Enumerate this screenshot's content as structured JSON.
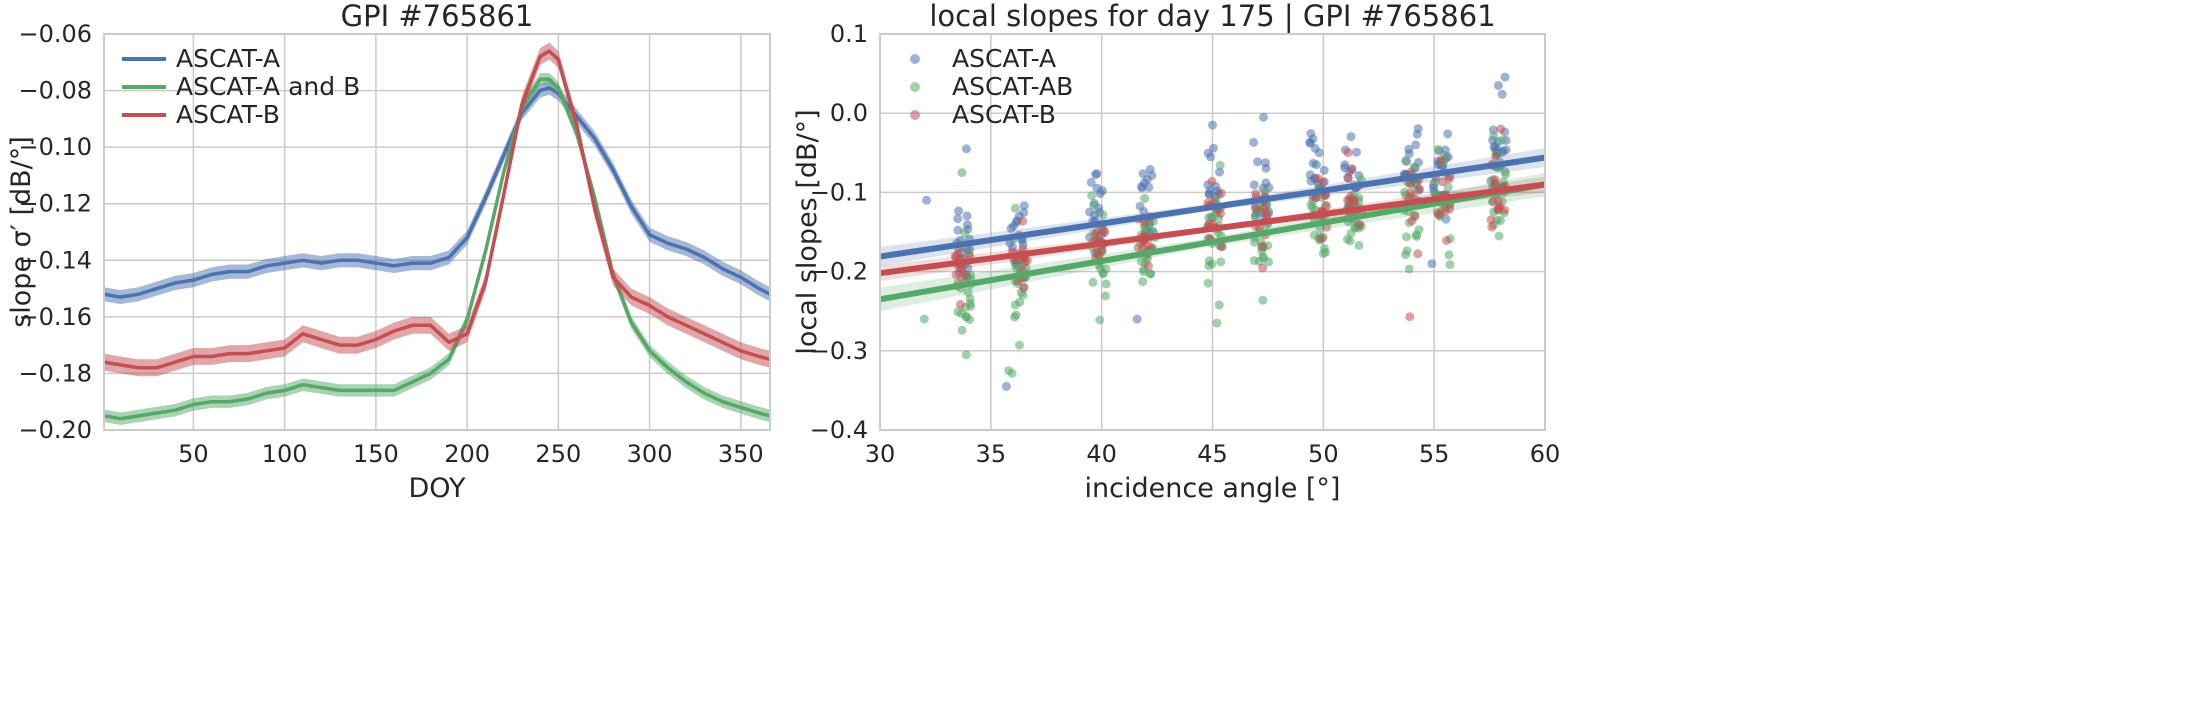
{
  "chart_data": [
    {
      "type": "line",
      "title": "GPI #765861",
      "xlabel": "DOY",
      "ylabel": "slope σ′ [dB/°]",
      "xlim": [
        1,
        366
      ],
      "ylim": [
        -0.2,
        -0.06
      ],
      "xticks": [
        50,
        100,
        150,
        200,
        250,
        300,
        350
      ],
      "yticks": [
        -0.2,
        -0.18,
        -0.16,
        -0.14,
        -0.12,
        -0.1,
        -0.08,
        -0.06
      ],
      "ytick_labels": [
        "−0.20",
        "−0.18",
        "−0.16",
        "−0.14",
        "−0.12",
        "−0.10",
        "−0.08",
        "−0.06"
      ],
      "grid": true,
      "legend_position": "top-left",
      "confidence_band": true,
      "x": [
        1,
        10,
        20,
        30,
        40,
        50,
        60,
        70,
        80,
        90,
        100,
        110,
        120,
        130,
        140,
        150,
        160,
        170,
        180,
        190,
        200,
        210,
        220,
        230,
        240,
        245,
        250,
        260,
        270,
        280,
        290,
        300,
        310,
        320,
        330,
        340,
        350,
        360,
        366
      ],
      "series": [
        {
          "name": "ASCAT-A",
          "color": "#4c72b0",
          "band": 0.0025,
          "values": [
            -0.152,
            -0.153,
            -0.152,
            -0.15,
            -0.148,
            -0.147,
            -0.145,
            -0.144,
            -0.144,
            -0.142,
            -0.141,
            -0.14,
            -0.141,
            -0.14,
            -0.14,
            -0.141,
            -0.142,
            -0.141,
            -0.141,
            -0.139,
            -0.132,
            -0.118,
            -0.103,
            -0.088,
            -0.08,
            -0.079,
            -0.081,
            -0.089,
            -0.097,
            -0.108,
            -0.121,
            -0.131,
            -0.134,
            -0.136,
            -0.139,
            -0.143,
            -0.146,
            -0.15,
            -0.152
          ]
        },
        {
          "name": "ASCAT-A and B",
          "color": "#55a868",
          "band": 0.0022,
          "values": [
            -0.195,
            -0.196,
            -0.195,
            -0.194,
            -0.193,
            -0.191,
            -0.19,
            -0.19,
            -0.189,
            -0.187,
            -0.186,
            -0.184,
            -0.185,
            -0.186,
            -0.186,
            -0.186,
            -0.186,
            -0.183,
            -0.18,
            -0.175,
            -0.161,
            -0.137,
            -0.109,
            -0.086,
            -0.076,
            -0.076,
            -0.079,
            -0.095,
            -0.118,
            -0.145,
            -0.162,
            -0.172,
            -0.178,
            -0.183,
            -0.187,
            -0.19,
            -0.192,
            -0.194,
            -0.195
          ]
        },
        {
          "name": "ASCAT-B",
          "color": "#c44e52",
          "band": 0.003,
          "values": [
            -0.176,
            -0.177,
            -0.178,
            -0.178,
            -0.176,
            -0.174,
            -0.174,
            -0.173,
            -0.173,
            -0.172,
            -0.171,
            -0.166,
            -0.168,
            -0.17,
            -0.17,
            -0.168,
            -0.165,
            -0.163,
            -0.163,
            -0.169,
            -0.166,
            -0.148,
            -0.117,
            -0.085,
            -0.068,
            -0.066,
            -0.069,
            -0.092,
            -0.122,
            -0.146,
            -0.153,
            -0.156,
            -0.16,
            -0.163,
            -0.166,
            -0.169,
            -0.172,
            -0.174,
            -0.175
          ]
        }
      ]
    },
    {
      "type": "scatter",
      "title": "local slopes for day 175 | GPI #765861",
      "xlabel": "incidence angle [°]",
      "ylabel": "local slopes [dB/°]",
      "xlim": [
        30,
        60
      ],
      "ylim": [
        -0.4,
        0.1
      ],
      "xticks": [
        30,
        35,
        40,
        45,
        50,
        55,
        60
      ],
      "yticks": [
        -0.4,
        -0.3,
        -0.2,
        -0.1,
        0.0,
        0.1
      ],
      "ytick_labels": [
        "−0.4",
        "−0.3",
        "−0.2",
        "−0.1",
        "0.0",
        "0.1"
      ],
      "grid": true,
      "legend_position": "top-left",
      "series": [
        {
          "name": "ASCAT-A",
          "color": "#4c72b0",
          "clusters": [
            {
              "x": 33.7,
              "mean": -0.16,
              "spread": 0.035,
              "n": 18
            },
            {
              "x": 36.2,
              "mean": -0.155,
              "spread": 0.035,
              "n": 18
            },
            {
              "x": 39.8,
              "mean": -0.115,
              "spread": 0.03,
              "n": 18
            },
            {
              "x": 42.0,
              "mean": -0.125,
              "spread": 0.035,
              "n": 18
            },
            {
              "x": 45.0,
              "mean": -0.1,
              "spread": 0.035,
              "n": 18
            },
            {
              "x": 47.2,
              "mean": -0.1,
              "spread": 0.035,
              "n": 18
            },
            {
              "x": 49.7,
              "mean": -0.075,
              "spread": 0.03,
              "n": 18
            },
            {
              "x": 51.3,
              "mean": -0.085,
              "spread": 0.03,
              "n": 18
            },
            {
              "x": 54.0,
              "mean": -0.07,
              "spread": 0.035,
              "n": 18
            },
            {
              "x": 55.3,
              "mean": -0.075,
              "spread": 0.03,
              "n": 18
            },
            {
              "x": 57.9,
              "mean": -0.04,
              "spread": 0.035,
              "n": 20
            }
          ],
          "points": [
            {
              "x": 32.1,
              "y": -0.11
            },
            {
              "x": 33.9,
              "y": -0.045
            },
            {
              "x": 35.7,
              "y": -0.345
            },
            {
              "x": 45.0,
              "y": -0.015
            },
            {
              "x": 47.3,
              "y": -0.005
            },
            {
              "x": 41.6,
              "y": -0.26
            },
            {
              "x": 54.9,
              "y": -0.19
            },
            {
              "x": 57.9,
              "y": 0.035
            }
          ],
          "fit": {
            "x": [
              30,
              60
            ],
            "y": [
              -0.181,
              -0.056
            ],
            "band": 0.012
          }
        },
        {
          "name": "ASCAT-AB",
          "color": "#55a868",
          "clusters": [
            {
              "x": 33.8,
              "mean": -0.215,
              "spread": 0.04,
              "n": 22
            },
            {
              "x": 36.3,
              "mean": -0.21,
              "spread": 0.04,
              "n": 22
            },
            {
              "x": 39.9,
              "mean": -0.185,
              "spread": 0.035,
              "n": 22
            },
            {
              "x": 42.1,
              "mean": -0.175,
              "spread": 0.035,
              "n": 22
            },
            {
              "x": 45.1,
              "mean": -0.16,
              "spread": 0.04,
              "n": 22
            },
            {
              "x": 47.2,
              "mean": -0.15,
              "spread": 0.035,
              "n": 22
            },
            {
              "x": 49.8,
              "mean": -0.145,
              "spread": 0.035,
              "n": 22
            },
            {
              "x": 51.4,
              "mean": -0.13,
              "spread": 0.035,
              "n": 22
            },
            {
              "x": 54.0,
              "mean": -0.125,
              "spread": 0.035,
              "n": 22
            },
            {
              "x": 55.4,
              "mean": -0.115,
              "spread": 0.035,
              "n": 22
            },
            {
              "x": 57.9,
              "mean": -0.1,
              "spread": 0.035,
              "n": 24
            }
          ],
          "points": [
            {
              "x": 32.0,
              "y": -0.26
            },
            {
              "x": 33.9,
              "y": -0.305
            },
            {
              "x": 35.8,
              "y": -0.325
            },
            {
              "x": 33.7,
              "y": -0.075
            },
            {
              "x": 45.2,
              "y": -0.265
            }
          ],
          "fit": {
            "x": [
              30,
              60
            ],
            "y": [
              -0.235,
              -0.09
            ],
            "band": 0.015
          }
        },
        {
          "name": "ASCAT-B",
          "color": "#c44e52",
          "clusters": [
            {
              "x": 33.7,
              "mean": -0.195,
              "spread": 0.03,
              "n": 14
            },
            {
              "x": 36.3,
              "mean": -0.185,
              "spread": 0.03,
              "n": 14
            },
            {
              "x": 39.9,
              "mean": -0.16,
              "spread": 0.025,
              "n": 14
            },
            {
              "x": 42.0,
              "mean": -0.16,
              "spread": 0.025,
              "n": 14
            },
            {
              "x": 45.1,
              "mean": -0.14,
              "spread": 0.03,
              "n": 14
            },
            {
              "x": 47.2,
              "mean": -0.135,
              "spread": 0.025,
              "n": 14
            },
            {
              "x": 49.8,
              "mean": -0.12,
              "spread": 0.03,
              "n": 14
            },
            {
              "x": 51.4,
              "mean": -0.115,
              "spread": 0.025,
              "n": 14
            },
            {
              "x": 54.0,
              "mean": -0.11,
              "spread": 0.03,
              "n": 14
            },
            {
              "x": 55.4,
              "mean": -0.11,
              "spread": 0.025,
              "n": 14
            },
            {
              "x": 57.9,
              "mean": -0.095,
              "spread": 0.03,
              "n": 16
            }
          ],
          "points": [
            {
              "x": 53.9,
              "y": -0.257
            },
            {
              "x": 58.0,
              "y": -0.02
            }
          ],
          "fit": {
            "x": [
              30,
              60
            ],
            "y": [
              -0.202,
              -0.09
            ],
            "band": 0.01
          }
        }
      ]
    }
  ]
}
